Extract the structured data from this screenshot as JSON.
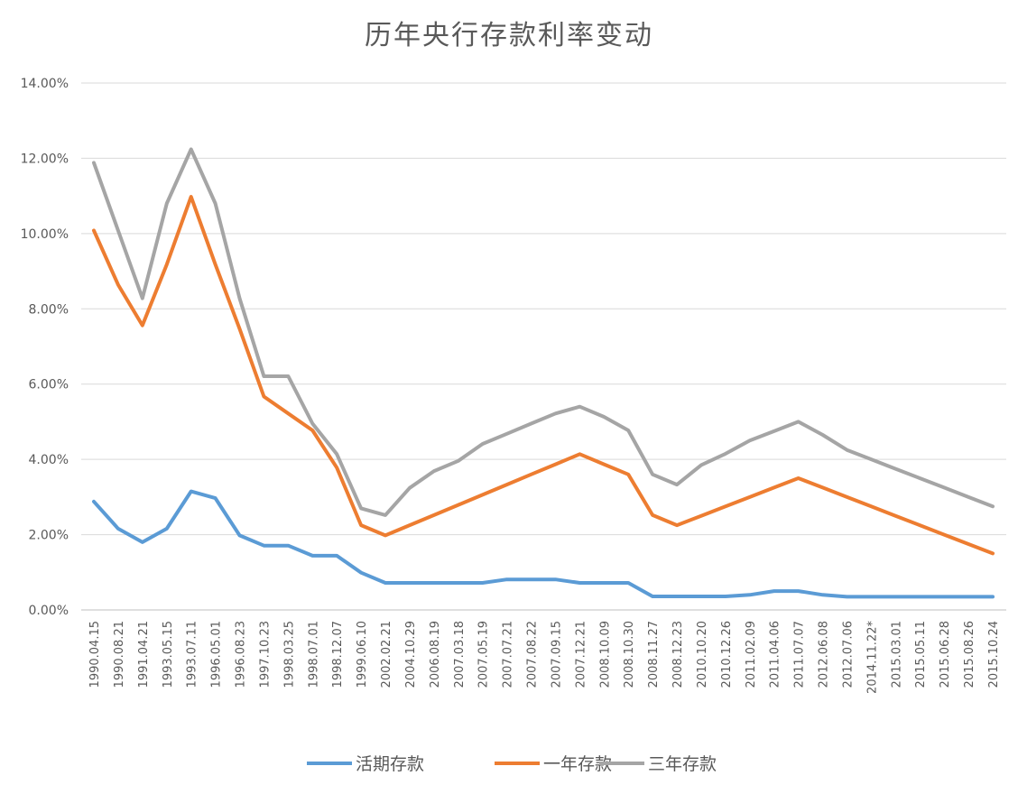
{
  "chart_data": {
    "type": "line",
    "title": "历年央行存款利率变动",
    "x": [
      "1990.04.15",
      "1990.08.21",
      "1991.04.21",
      "1993.05.15",
      "1993.07.11",
      "1996.05.01",
      "1996.08.23",
      "1997.10.23",
      "1998.03.25",
      "1998.07.01",
      "1998.12.07",
      "1999.06.10",
      "2002.02.21",
      "2004.10.29",
      "2006.08.19",
      "2007.03.18",
      "2007.05.19",
      "2007.07.21",
      "2007.08.22",
      "2007.09.15",
      "2007.12.21",
      "2008.10.09",
      "2008.10.30",
      "2008.11.27",
      "2008.12.23",
      "2010.10.20",
      "2010.12.26",
      "2011.02.09",
      "2011.04.06",
      "2011.07.07",
      "2012.06.08",
      "2012.07.06",
      "2014.11.22*",
      "2015.03.01",
      "2015.05.11",
      "2015.06.28",
      "2015.08.26",
      "2015.10.24"
    ],
    "series": [
      {
        "name": "活期存款",
        "color": "#5B9BD5",
        "values": [
          2.88,
          2.16,
          1.8,
          2.16,
          3.15,
          2.97,
          1.98,
          1.71,
          1.71,
          1.44,
          1.44,
          0.99,
          0.72,
          0.72,
          0.72,
          0.72,
          0.72,
          0.81,
          0.81,
          0.81,
          0.72,
          0.72,
          0.72,
          0.36,
          0.36,
          0.36,
          0.36,
          0.4,
          0.5,
          0.5,
          0.4,
          0.35,
          0.35,
          0.35,
          0.35,
          0.35,
          0.35,
          0.35
        ]
      },
      {
        "name": "一年存款",
        "color": "#ED7D31",
        "values": [
          10.08,
          8.64,
          7.56,
          9.18,
          10.98,
          9.18,
          7.47,
          5.67,
          5.22,
          4.77,
          3.78,
          2.25,
          1.98,
          2.25,
          2.52,
          2.79,
          3.06,
          3.33,
          3.6,
          3.87,
          4.14,
          3.87,
          3.6,
          2.52,
          2.25,
          2.5,
          2.75,
          3.0,
          3.25,
          3.5,
          3.25,
          3.0,
          2.75,
          2.5,
          2.25,
          2.0,
          1.75,
          1.5
        ]
      },
      {
        "name": "三年存款",
        "color": "#A5A5A5",
        "values": [
          11.88,
          10.08,
          8.28,
          10.8,
          12.24,
          10.8,
          8.28,
          6.21,
          6.21,
          4.95,
          4.14,
          2.7,
          2.52,
          3.24,
          3.69,
          3.96,
          4.41,
          4.68,
          4.95,
          5.22,
          5.4,
          5.13,
          4.77,
          3.6,
          3.33,
          3.85,
          4.15,
          4.5,
          4.75,
          5.0,
          4.65,
          4.25,
          4.0,
          3.75,
          3.5,
          3.25,
          3.0,
          2.75
        ]
      }
    ],
    "y_tick_labels": [
      "0.00%",
      "2.00%",
      "4.00%",
      "6.00%",
      "8.00%",
      "10.00%",
      "12.00%",
      "14.00%"
    ],
    "ylim": [
      0,
      14
    ],
    "grid": "horizontal",
    "legend_position": "bottom"
  }
}
